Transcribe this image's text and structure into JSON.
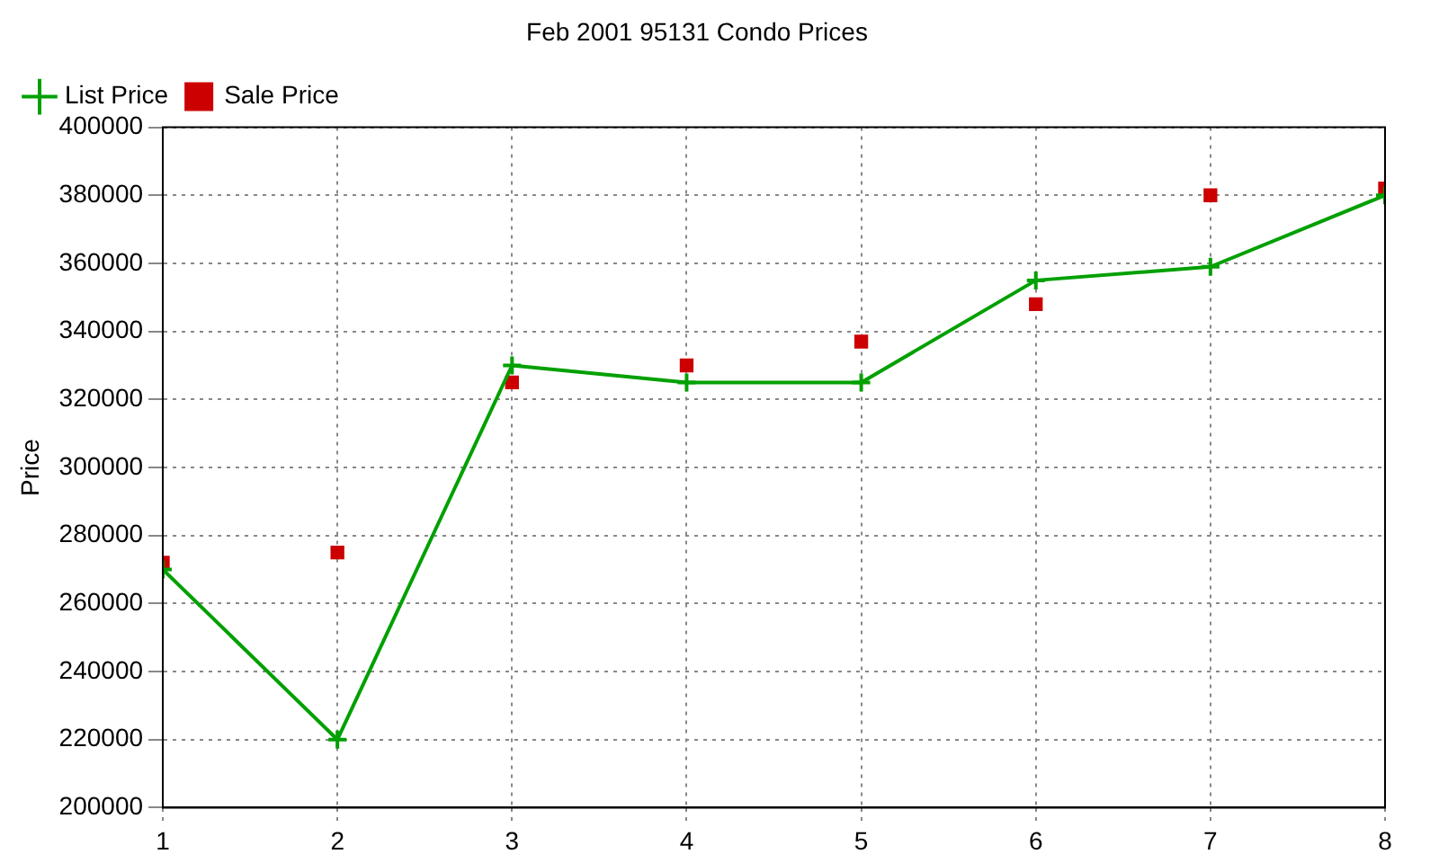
{
  "chart_data": {
    "type": "line",
    "title": "Feb 2001 95131 Condo Prices",
    "ylabel": "Price",
    "x": [
      1,
      2,
      3,
      4,
      5,
      6,
      7,
      8
    ],
    "series": [
      {
        "name": "List Price",
        "marker": "cross",
        "color": "#00a000",
        "values": [
          270000,
          220000,
          330000,
          325000,
          325000,
          355000,
          359000,
          380000
        ]
      },
      {
        "name": "Sale Price",
        "type": "scatter",
        "marker": "square",
        "color": "#cc0000",
        "values": [
          272000,
          275000,
          325000,
          330000,
          337000,
          348000,
          380000,
          382000
        ]
      }
    ],
    "xlim": [
      1,
      8
    ],
    "xticks": [
      1,
      2,
      3,
      4,
      5,
      6,
      7,
      8
    ],
    "ylim": [
      200000,
      400000
    ],
    "yticks": [
      200000,
      220000,
      240000,
      260000,
      280000,
      300000,
      320000,
      340000,
      360000,
      380000,
      400000
    ],
    "grid": true,
    "legend": "top left",
    "line_style": "solid"
  }
}
